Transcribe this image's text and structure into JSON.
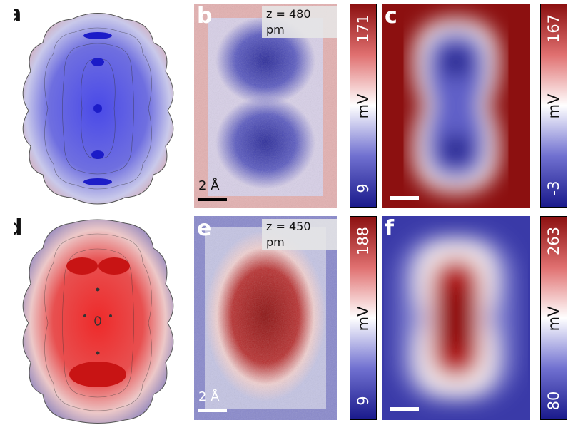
{
  "panels": {
    "a": {
      "label": "a"
    },
    "b": {
      "label": "b",
      "height_label": "z = 480 pm",
      "scale_label": "2 Å"
    },
    "c": {
      "label": "c"
    },
    "d": {
      "label": "d"
    },
    "e": {
      "label": "e",
      "height_label": "z = 450 pm",
      "scale_label": "2 Å"
    },
    "f": {
      "label": "f"
    }
  },
  "colorbars": [
    {
      "id": "b",
      "unit": "mV",
      "min": "9",
      "max": "171"
    },
    {
      "id": "c",
      "unit": "mV",
      "min": "-3",
      "max": "167"
    },
    {
      "id": "e",
      "unit": "mV",
      "min": "9",
      "max": "188"
    },
    {
      "id": "f",
      "unit": "mV",
      "min": "80",
      "max": "263"
    }
  ],
  "colors": {
    "low": "#1a1a8c",
    "mid": "#ffffff",
    "high": "#8c1010"
  }
}
